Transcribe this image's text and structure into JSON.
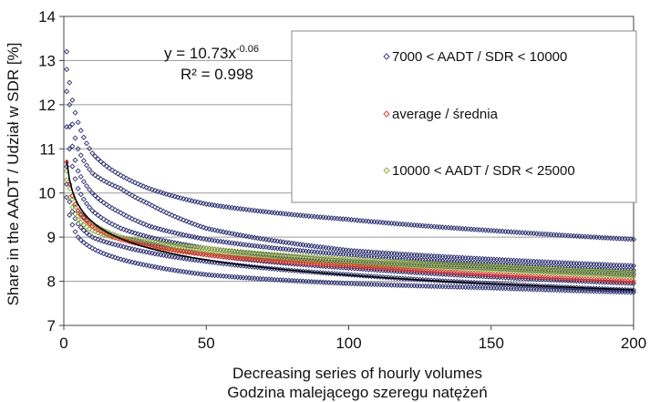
{
  "chart_data": {
    "type": "scatter",
    "xlabel_line1": "Decreasing series of hourly volumes",
    "xlabel_line2": "Godzina malejącego szeregu natężeń",
    "ylabel": "Share in the AADT / Udział w SDR [%]",
    "xlim": [
      0,
      200
    ],
    "ylim": [
      7,
      14
    ],
    "x_ticks": [
      0,
      50,
      100,
      150,
      200
    ],
    "y_ticks": [
      7,
      8,
      9,
      10,
      11,
      12,
      13,
      14
    ],
    "grid": "horizontal",
    "legend_position": "top-right",
    "trendline": {
      "equation_text": "y = 10.73x",
      "equation_exponent": "-0.06",
      "r2_text": "R² = 0.998",
      "a": 10.73,
      "b": -0.06,
      "color": "#000000"
    },
    "legend": [
      {
        "label": "7000 < AADT / SDR < 10000",
        "color": "#2b2f6e",
        "marker": "diamond"
      },
      {
        "label": "average / średnia",
        "color": "#e0302a",
        "marker": "diamond"
      },
      {
        "label": "10000 < AADT / SDR < 25000",
        "color": "#8aa83a",
        "marker": "diamond"
      }
    ],
    "series": [
      {
        "name": "7000 < AADT / SDR < 10000",
        "color": "#2b2f6e",
        "curves": [
          {
            "points": [
              [
                1,
                13.2
              ],
              [
                2,
                12.5
              ],
              [
                5,
                11.6
              ],
              [
                10,
                10.9
              ],
              [
                20,
                10.4
              ],
              [
                30,
                10.1
              ],
              [
                50,
                9.75
              ],
              [
                100,
                9.4
              ],
              [
                150,
                9.15
              ],
              [
                200,
                8.95
              ]
            ]
          },
          {
            "points": [
              [
                1,
                12.8
              ],
              [
                2,
                12.0
              ],
              [
                5,
                11.0
              ],
              [
                10,
                10.45
              ],
              [
                20,
                10.1
              ],
              [
                30,
                9.75
              ],
              [
                50,
                9.2
              ],
              [
                100,
                8.7
              ],
              [
                150,
                8.5
              ],
              [
                200,
                8.35
              ]
            ]
          },
          {
            "points": [
              [
                1,
                12.3
              ],
              [
                2,
                11.5
              ],
              [
                5,
                10.5
              ],
              [
                10,
                10.0
              ],
              [
                20,
                9.55
              ],
              [
                30,
                9.25
              ],
              [
                50,
                8.95
              ],
              [
                100,
                8.6
              ],
              [
                150,
                8.4
              ],
              [
                200,
                8.25
              ]
            ]
          },
          {
            "points": [
              [
                1,
                11.5
              ],
              [
                2,
                11.0
              ],
              [
                5,
                10.1
              ],
              [
                10,
                9.6
              ],
              [
                20,
                9.2
              ],
              [
                30,
                9.0
              ],
              [
                50,
                8.75
              ],
              [
                100,
                8.45
              ],
              [
                150,
                8.3
              ],
              [
                200,
                8.15
              ]
            ]
          },
          {
            "points": [
              [
                1,
                10.6
              ],
              [
                2,
                10.2
              ],
              [
                5,
                9.6
              ],
              [
                10,
                9.3
              ],
              [
                20,
                9.0
              ],
              [
                30,
                8.85
              ],
              [
                50,
                8.6
              ],
              [
                100,
                8.3
              ],
              [
                150,
                8.1
              ],
              [
                200,
                7.95
              ]
            ]
          },
          {
            "points": [
              [
                1,
                10.2
              ],
              [
                2,
                9.8
              ],
              [
                5,
                9.3
              ],
              [
                10,
                9.0
              ],
              [
                20,
                8.8
              ],
              [
                30,
                8.65
              ],
              [
                50,
                8.45
              ],
              [
                100,
                8.15
              ],
              [
                150,
                7.95
              ],
              [
                200,
                7.8
              ]
            ]
          },
          {
            "points": [
              [
                1,
                9.9
              ],
              [
                2,
                9.5
              ],
              [
                5,
                9.0
              ],
              [
                10,
                8.75
              ],
              [
                20,
                8.5
              ],
              [
                30,
                8.35
              ],
              [
                50,
                8.15
              ],
              [
                100,
                7.95
              ],
              [
                150,
                7.85
              ],
              [
                200,
                7.75
              ]
            ]
          }
        ]
      },
      {
        "name": "10000 < AADT / SDR < 25000",
        "color": "#8aa83a",
        "curves": [
          {
            "points": [
              [
                1,
                10.5
              ],
              [
                2,
                10.1
              ],
              [
                5,
                9.55
              ],
              [
                10,
                9.3
              ],
              [
                20,
                9.0
              ],
              [
                30,
                8.9
              ],
              [
                50,
                8.75
              ],
              [
                100,
                8.5
              ],
              [
                150,
                8.35
              ],
              [
                200,
                8.2
              ]
            ]
          },
          {
            "points": [
              [
                1,
                10.3
              ],
              [
                2,
                9.9
              ],
              [
                5,
                9.4
              ],
              [
                10,
                9.15
              ],
              [
                20,
                8.95
              ],
              [
                30,
                8.8
              ],
              [
                50,
                8.65
              ],
              [
                100,
                8.4
              ],
              [
                150,
                8.25
              ],
              [
                200,
                8.1
              ]
            ]
          }
        ]
      },
      {
        "name": "average / średnia",
        "color": "#e0302a",
        "curves": [
          {
            "points": [
              [
                1,
                10.7
              ],
              [
                2,
                10.2
              ],
              [
                5,
                9.6
              ],
              [
                10,
                9.25
              ],
              [
                20,
                8.95
              ],
              [
                30,
                8.8
              ],
              [
                50,
                8.6
              ],
              [
                100,
                8.35
              ],
              [
                150,
                8.15
              ],
              [
                200,
                8.0
              ]
            ]
          }
        ]
      }
    ]
  }
}
